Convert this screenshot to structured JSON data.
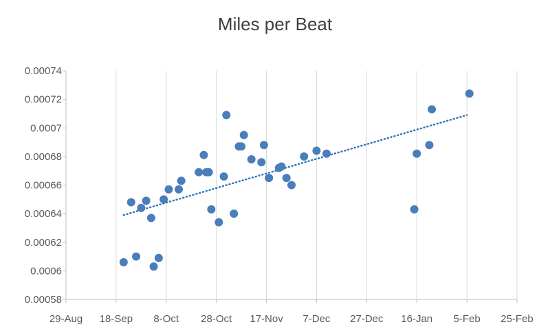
{
  "chart_data": {
    "type": "scatter",
    "title": "Miles per Beat",
    "xlabel": "",
    "ylabel": "",
    "x_tick_labels": [
      "29-Aug",
      "18-Sep",
      "8-Oct",
      "28-Oct",
      "17-Nov",
      "7-Dec",
      "27-Dec",
      "16-Jan",
      "5-Feb",
      "25-Feb"
    ],
    "x_ticks": [
      "2021-08-29",
      "2021-09-18",
      "2021-10-08",
      "2021-10-28",
      "2021-11-17",
      "2021-12-07",
      "2021-12-27",
      "2022-01-16",
      "2022-02-05",
      "2022-02-25"
    ],
    "xlim": [
      "2021-08-29",
      "2022-02-25"
    ],
    "ylim": [
      0.00058,
      0.00074
    ],
    "y_ticks": [
      "0.00058",
      "0.0006",
      "0.00062",
      "0.00064",
      "0.00066",
      "0.00068",
      "0.0007",
      "0.00072",
      "0.00074"
    ],
    "grid": "vertical",
    "legend": "none",
    "series": [
      {
        "color": "#4a7ebb",
        "points": [
          {
            "x": "2021-09-21",
            "y": 0.000606
          },
          {
            "x": "2021-09-24",
            "y": 0.000648
          },
          {
            "x": "2021-09-26",
            "y": 0.00061
          },
          {
            "x": "2021-09-28",
            "y": 0.000644
          },
          {
            "x": "2021-09-30",
            "y": 0.000649
          },
          {
            "x": "2021-10-02",
            "y": 0.000637
          },
          {
            "x": "2021-10-03",
            "y": 0.000603
          },
          {
            "x": "2021-10-05",
            "y": 0.000609
          },
          {
            "x": "2021-10-07",
            "y": 0.00065
          },
          {
            "x": "2021-10-09",
            "y": 0.000657
          },
          {
            "x": "2021-10-13",
            "y": 0.000657
          },
          {
            "x": "2021-10-14",
            "y": 0.000663
          },
          {
            "x": "2021-10-21",
            "y": 0.000669
          },
          {
            "x": "2021-10-23",
            "y": 0.000681
          },
          {
            "x": "2021-10-24",
            "y": 0.000669
          },
          {
            "x": "2021-10-25",
            "y": 0.000669
          },
          {
            "x": "2021-10-26",
            "y": 0.000643
          },
          {
            "x": "2021-10-29",
            "y": 0.000634
          },
          {
            "x": "2021-10-31",
            "y": 0.000666
          },
          {
            "x": "2021-11-01",
            "y": 0.000709
          },
          {
            "x": "2021-11-04",
            "y": 0.00064
          },
          {
            "x": "2021-11-06",
            "y": 0.000687
          },
          {
            "x": "2021-11-07",
            "y": 0.000687
          },
          {
            "x": "2021-11-08",
            "y": 0.000695
          },
          {
            "x": "2021-11-11",
            "y": 0.000678
          },
          {
            "x": "2021-11-15",
            "y": 0.000676
          },
          {
            "x": "2021-11-16",
            "y": 0.000688
          },
          {
            "x": "2021-11-18",
            "y": 0.000665
          },
          {
            "x": "2021-11-22",
            "y": 0.000672
          },
          {
            "x": "2021-11-23",
            "y": 0.000673
          },
          {
            "x": "2021-11-25",
            "y": 0.000665
          },
          {
            "x": "2021-11-27",
            "y": 0.00066
          },
          {
            "x": "2021-12-02",
            "y": 0.00068
          },
          {
            "x": "2021-12-07",
            "y": 0.000684
          },
          {
            "x": "2021-12-11",
            "y": 0.000682
          },
          {
            "x": "2022-01-15",
            "y": 0.000643
          },
          {
            "x": "2022-01-16",
            "y": 0.000682
          },
          {
            "x": "2022-01-21",
            "y": 0.000688
          },
          {
            "x": "2022-01-22",
            "y": 0.000713
          },
          {
            "x": "2022-02-06",
            "y": 0.000724
          }
        ],
        "trendline": {
          "type": "linear",
          "style": "dotted",
          "color": "#2e75b6",
          "start": {
            "x": "2021-09-21",
            "y": 0.000639
          },
          "end": {
            "x": "2022-02-05",
            "y": 0.000709
          }
        }
      }
    ]
  }
}
